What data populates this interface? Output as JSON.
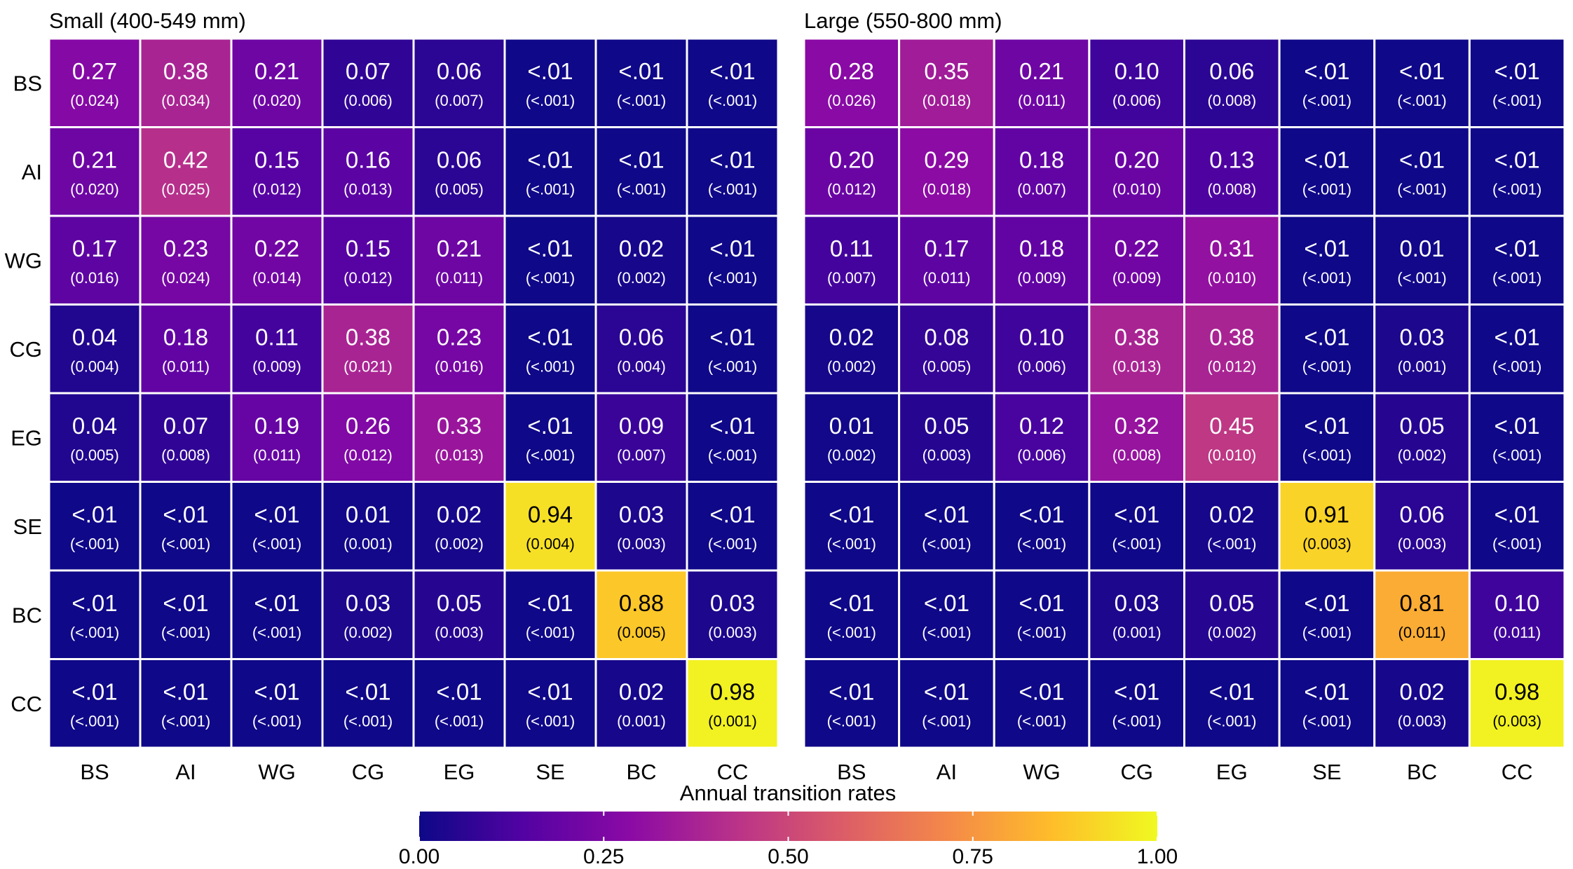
{
  "chart_data": {
    "type": "heatmap",
    "legend": {
      "title": "Annual transition rates",
      "range": [
        0,
        1
      ],
      "ticks": [
        "0.00",
        "0.25",
        "0.50",
        "0.75",
        "1.00"
      ],
      "tick_values": [
        0,
        0.25,
        0.5,
        0.75,
        1
      ],
      "placement": "bottom",
      "colorscale": [
        "#0d0887",
        "#5402a3",
        "#8b0aa5",
        "#b93289",
        "#db5c68",
        "#f48849",
        "#febd2a",
        "#f0f921"
      ]
    },
    "panels": [
      {
        "title": "Small (400-549 mm)",
        "rows": [
          "BS",
          "AI",
          "WG",
          "CG",
          "EG",
          "SE",
          "BC",
          "CC"
        ],
        "cols": [
          "BS",
          "AI",
          "WG",
          "CG",
          "EG",
          "SE",
          "BC",
          "CC"
        ],
        "values": [
          [
            0.27,
            0.38,
            0.21,
            0.07,
            0.06,
            0.005,
            0.005,
            0.005
          ],
          [
            0.21,
            0.42,
            0.15,
            0.16,
            0.06,
            0.005,
            0.005,
            0.005
          ],
          [
            0.17,
            0.23,
            0.22,
            0.15,
            0.21,
            0.005,
            0.02,
            0.005
          ],
          [
            0.04,
            0.18,
            0.11,
            0.38,
            0.23,
            0.005,
            0.06,
            0.005
          ],
          [
            0.04,
            0.07,
            0.19,
            0.26,
            0.33,
            0.005,
            0.09,
            0.005
          ],
          [
            0.005,
            0.005,
            0.005,
            0.01,
            0.02,
            0.94,
            0.03,
            0.005
          ],
          [
            0.005,
            0.005,
            0.005,
            0.03,
            0.05,
            0.005,
            0.88,
            0.03
          ],
          [
            0.005,
            0.005,
            0.005,
            0.005,
            0.005,
            0.005,
            0.02,
            0.98
          ]
        ],
        "labels": [
          [
            "0.27",
            "0.38",
            "0.21",
            "0.07",
            "0.06",
            "<.01",
            "<.01",
            "<.01"
          ],
          [
            "0.21",
            "0.42",
            "0.15",
            "0.16",
            "0.06",
            "<.01",
            "<.01",
            "<.01"
          ],
          [
            "0.17",
            "0.23",
            "0.22",
            "0.15",
            "0.21",
            "<.01",
            "0.02",
            "<.01"
          ],
          [
            "0.04",
            "0.18",
            "0.11",
            "0.38",
            "0.23",
            "<.01",
            "0.06",
            "<.01"
          ],
          [
            "0.04",
            "0.07",
            "0.19",
            "0.26",
            "0.33",
            "<.01",
            "0.09",
            "<.01"
          ],
          [
            "<.01",
            "<.01",
            "<.01",
            "0.01",
            "0.02",
            "0.94",
            "0.03",
            "<.01"
          ],
          [
            "<.01",
            "<.01",
            "<.01",
            "0.03",
            "0.05",
            "<.01",
            "0.88",
            "0.03"
          ],
          [
            "<.01",
            "<.01",
            "<.01",
            "<.01",
            "<.01",
            "<.01",
            "0.02",
            "0.98"
          ]
        ],
        "se": [
          [
            "(0.024)",
            "(0.034)",
            "(0.020)",
            "(0.006)",
            "(0.007)",
            "(<.001)",
            "(<.001)",
            "(<.001)"
          ],
          [
            "(0.020)",
            "(0.025)",
            "(0.012)",
            "(0.013)",
            "(0.005)",
            "(<.001)",
            "(<.001)",
            "(<.001)"
          ],
          [
            "(0.016)",
            "(0.024)",
            "(0.014)",
            "(0.012)",
            "(0.011)",
            "(<.001)",
            "(0.002)",
            "(<.001)"
          ],
          [
            "(0.004)",
            "(0.011)",
            "(0.009)",
            "(0.021)",
            "(0.016)",
            "(<.001)",
            "(0.004)",
            "(<.001)"
          ],
          [
            "(0.005)",
            "(0.008)",
            "(0.011)",
            "(0.012)",
            "(0.013)",
            "(<.001)",
            "(0.007)",
            "(<.001)"
          ],
          [
            "(<.001)",
            "(<.001)",
            "(<.001)",
            "(0.001)",
            "(0.002)",
            "(0.004)",
            "(0.003)",
            "(<.001)"
          ],
          [
            "(<.001)",
            "(<.001)",
            "(<.001)",
            "(0.002)",
            "(0.003)",
            "(<.001)",
            "(0.005)",
            "(0.003)"
          ],
          [
            "(<.001)",
            "(<.001)",
            "(<.001)",
            "(<.001)",
            "(<.001)",
            "(<.001)",
            "(0.001)",
            "(0.001)"
          ]
        ]
      },
      {
        "title": "Large (550-800 mm)",
        "rows": [
          "BS",
          "AI",
          "WG",
          "CG",
          "EG",
          "SE",
          "BC",
          "CC"
        ],
        "cols": [
          "BS",
          "AI",
          "WG",
          "CG",
          "EG",
          "SE",
          "BC",
          "CC"
        ],
        "values": [
          [
            0.28,
            0.35,
            0.21,
            0.1,
            0.06,
            0.005,
            0.005,
            0.005
          ],
          [
            0.2,
            0.29,
            0.18,
            0.2,
            0.13,
            0.005,
            0.005,
            0.005
          ],
          [
            0.11,
            0.17,
            0.18,
            0.22,
            0.31,
            0.005,
            0.01,
            0.005
          ],
          [
            0.02,
            0.08,
            0.1,
            0.38,
            0.38,
            0.005,
            0.03,
            0.005
          ],
          [
            0.01,
            0.05,
            0.12,
            0.32,
            0.45,
            0.005,
            0.05,
            0.005
          ],
          [
            0.005,
            0.005,
            0.005,
            0.005,
            0.02,
            0.91,
            0.06,
            0.005
          ],
          [
            0.005,
            0.005,
            0.005,
            0.03,
            0.05,
            0.005,
            0.81,
            0.1
          ],
          [
            0.005,
            0.005,
            0.005,
            0.005,
            0.005,
            0.005,
            0.02,
            0.98
          ]
        ],
        "labels": [
          [
            "0.28",
            "0.35",
            "0.21",
            "0.10",
            "0.06",
            "<.01",
            "<.01",
            "<.01"
          ],
          [
            "0.20",
            "0.29",
            "0.18",
            "0.20",
            "0.13",
            "<.01",
            "<.01",
            "<.01"
          ],
          [
            "0.11",
            "0.17",
            "0.18",
            "0.22",
            "0.31",
            "<.01",
            "0.01",
            "<.01"
          ],
          [
            "0.02",
            "0.08",
            "0.10",
            "0.38",
            "0.38",
            "<.01",
            "0.03",
            "<.01"
          ],
          [
            "0.01",
            "0.05",
            "0.12",
            "0.32",
            "0.45",
            "<.01",
            "0.05",
            "<.01"
          ],
          [
            "<.01",
            "<.01",
            "<.01",
            "<.01",
            "0.02",
            "0.91",
            "0.06",
            "<.01"
          ],
          [
            "<.01",
            "<.01",
            "<.01",
            "0.03",
            "0.05",
            "<.01",
            "0.81",
            "0.10"
          ],
          [
            "<.01",
            "<.01",
            "<.01",
            "<.01",
            "<.01",
            "<.01",
            "0.02",
            "0.98"
          ]
        ],
        "se": [
          [
            "(0.026)",
            "(0.018)",
            "(0.011)",
            "(0.006)",
            "(0.008)",
            "(<.001)",
            "(<.001)",
            "(<.001)"
          ],
          [
            "(0.012)",
            "(0.018)",
            "(0.007)",
            "(0.010)",
            "(0.008)",
            "(<.001)",
            "(<.001)",
            "(<.001)"
          ],
          [
            "(0.007)",
            "(0.011)",
            "(0.009)",
            "(0.009)",
            "(0.010)",
            "(<.001)",
            "(<.001)",
            "(<.001)"
          ],
          [
            "(0.002)",
            "(0.005)",
            "(0.006)",
            "(0.013)",
            "(0.012)",
            "(<.001)",
            "(0.001)",
            "(<.001)"
          ],
          [
            "(0.002)",
            "(0.003)",
            "(0.006)",
            "(0.008)",
            "(0.010)",
            "(<.001)",
            "(0.002)",
            "(<.001)"
          ],
          [
            "(<.001)",
            "(<.001)",
            "(<.001)",
            "(<.001)",
            "(<.001)",
            "(0.003)",
            "(0.003)",
            "(<.001)"
          ],
          [
            "(<.001)",
            "(<.001)",
            "(<.001)",
            "(0.001)",
            "(0.002)",
            "(<.001)",
            "(0.011)",
            "(0.011)"
          ],
          [
            "(<.001)",
            "(<.001)",
            "(<.001)",
            "(<.001)",
            "(<.001)",
            "(<.001)",
            "(0.003)",
            "(0.003)"
          ]
        ]
      }
    ]
  }
}
